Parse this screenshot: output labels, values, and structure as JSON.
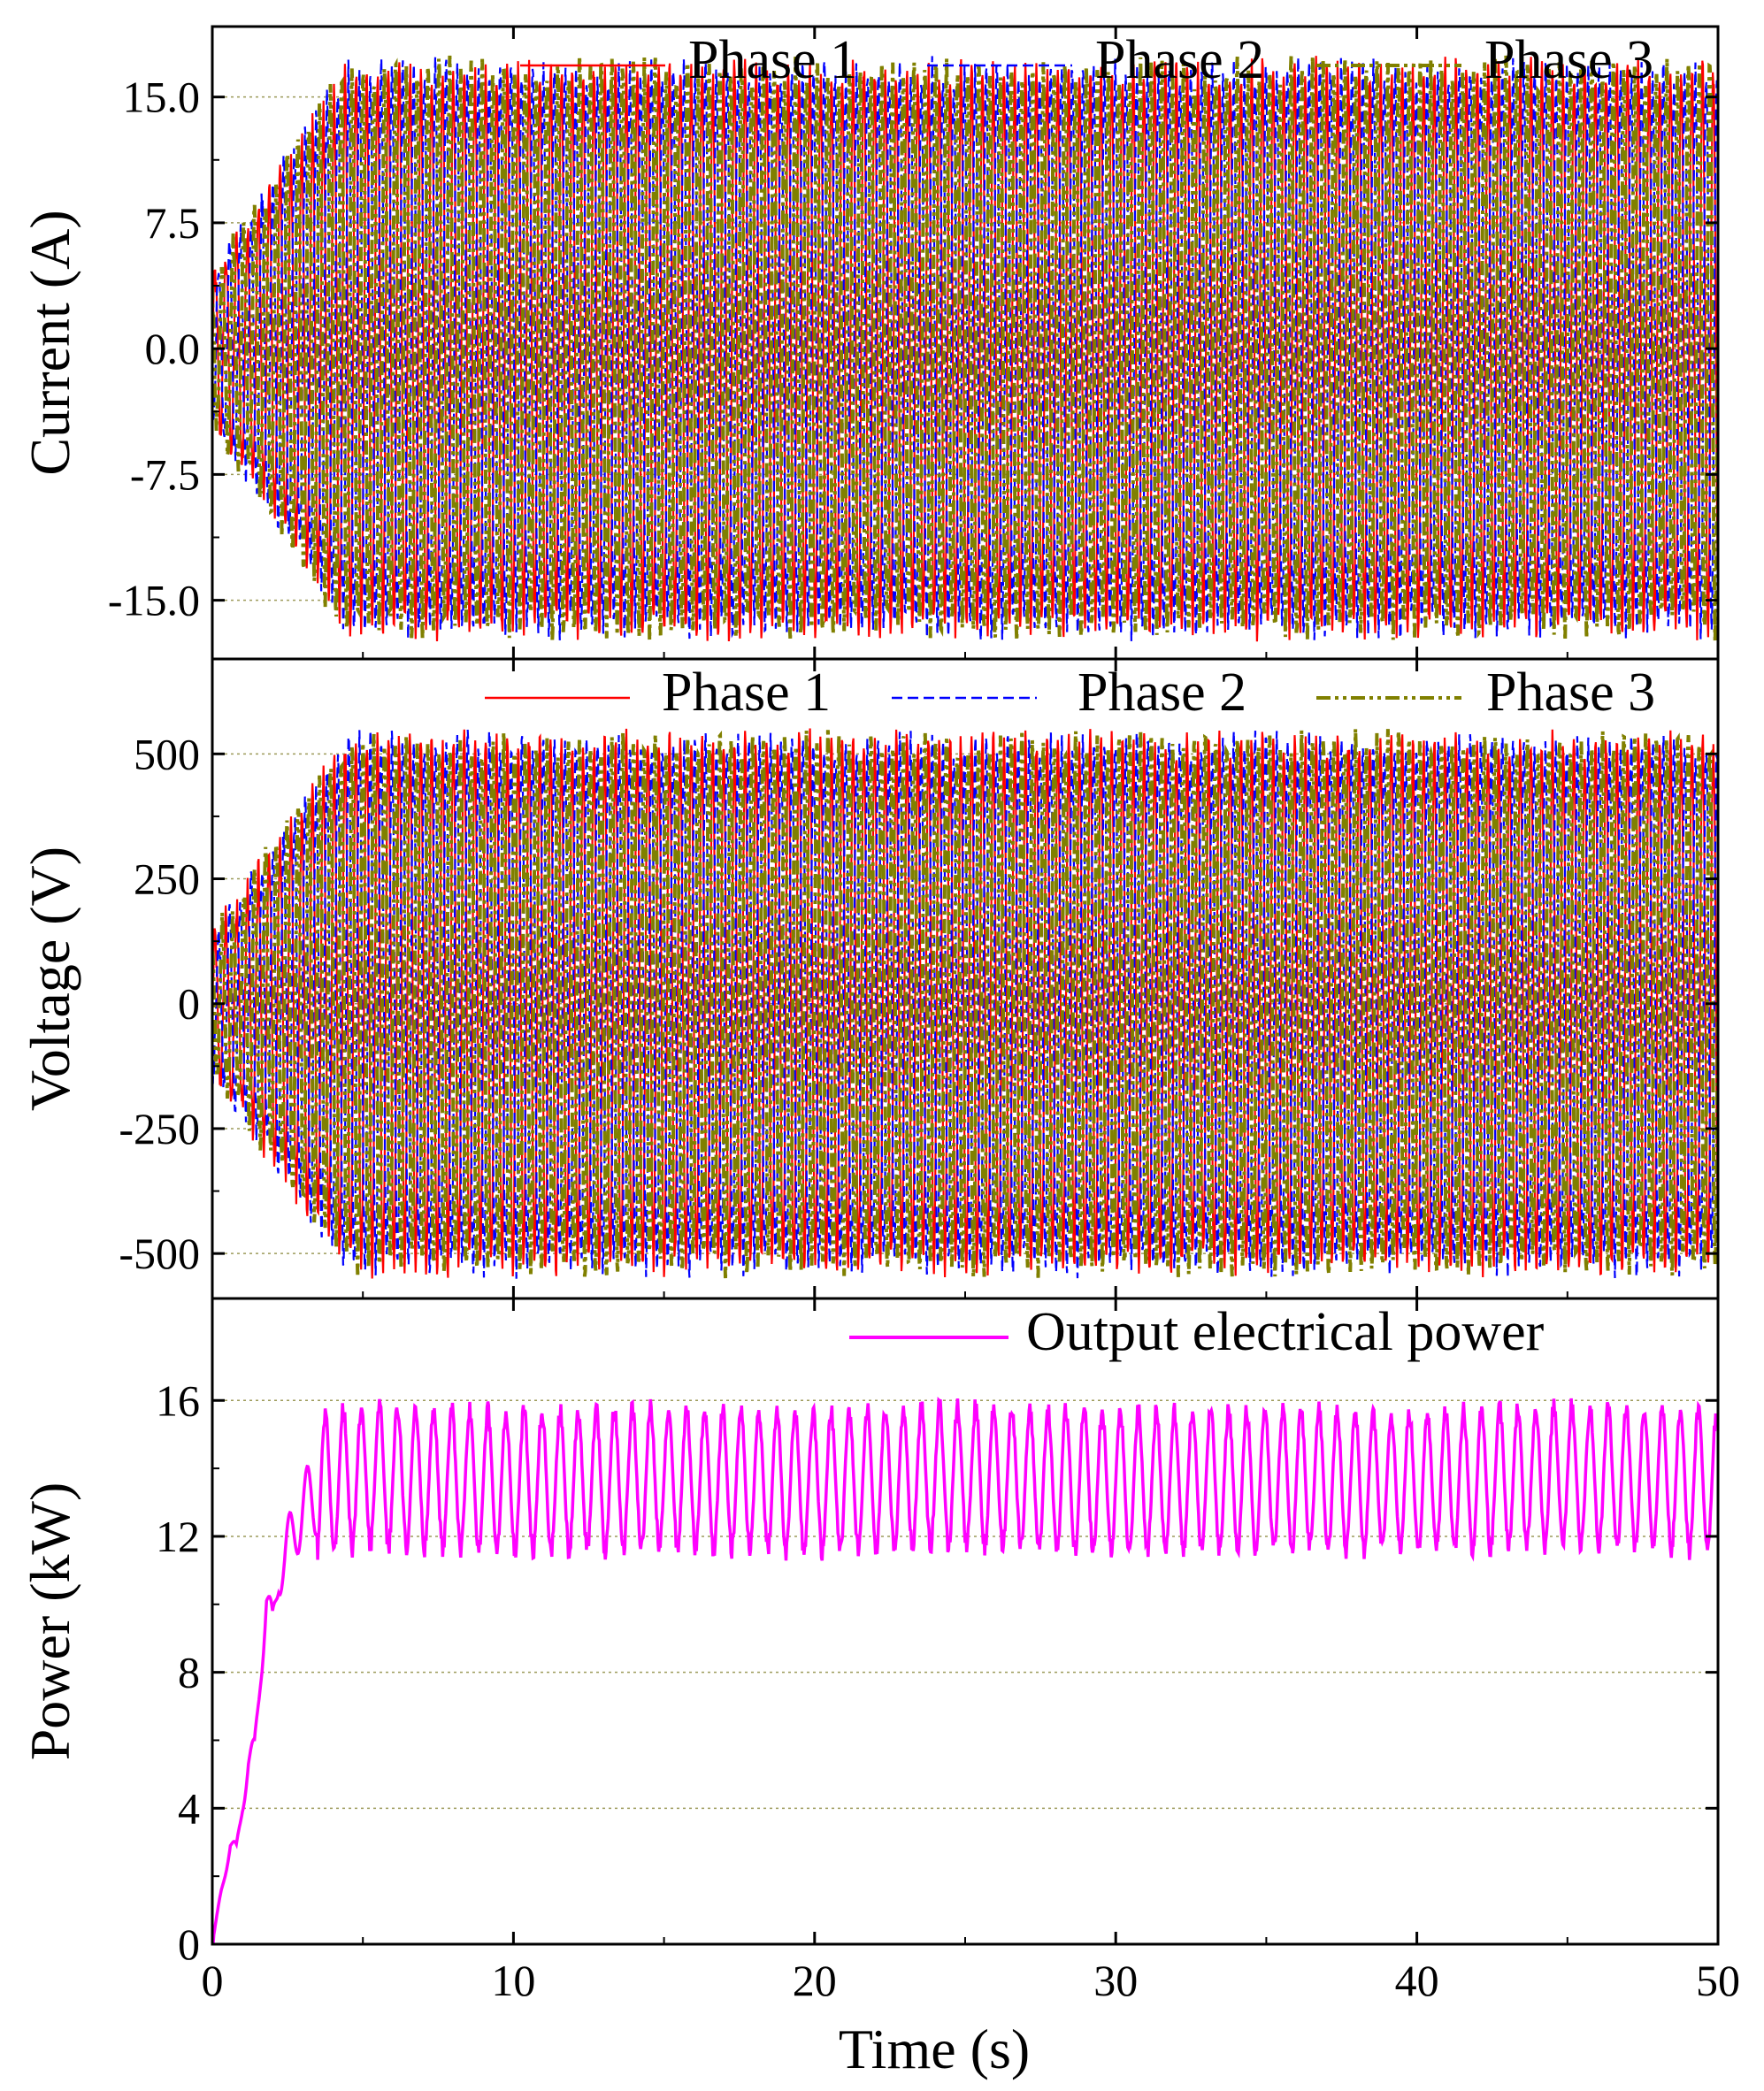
{
  "figure": {
    "shared_x": {
      "label": "Time (s)",
      "lim": [
        0,
        50
      ],
      "ticks": [
        0,
        10,
        20,
        30,
        40,
        50
      ],
      "tick_labels": [
        "0",
        "10",
        "20",
        "30",
        "40",
        "50"
      ]
    }
  },
  "chart_data": [
    {
      "id": "current",
      "type": "line",
      "ylabel": "Current (A)",
      "ylim": [
        -18.5,
        19.2
      ],
      "yticks": [
        -15,
        -7.5,
        0,
        7.5,
        15
      ],
      "ytick_labels": [
        "-15.0",
        "-7.5",
        "0.0",
        "7.5",
        "15.0"
      ],
      "grid": "horizontal dotted",
      "legend_position": "top-right",
      "series": [
        {
          "name": "Phase 1",
          "color": "#ff0000",
          "style": "solid",
          "amplitude": 16.5,
          "phase_deg": 0
        },
        {
          "name": "Phase 2",
          "color": "#0000ff",
          "style": "dashed",
          "amplitude": 16.5,
          "phase_deg": -120
        },
        {
          "name": "Phase 3",
          "color": "#808000",
          "style": "dash-dot-dot",
          "amplitude": 16.5,
          "phase_deg": 120
        }
      ],
      "envelope": {
        "startup_time_s": 4.5,
        "oscillation_period_s": 0.36
      }
    },
    {
      "id": "voltage",
      "type": "line",
      "ylabel": "Voltage (V)",
      "ylim": [
        -590,
        690
      ],
      "yticks": [
        -500,
        -250,
        0,
        250,
        500
      ],
      "ytick_labels": [
        "-500",
        "-250",
        "0",
        "250",
        "500"
      ],
      "grid": "horizontal dotted",
      "legend_position": "top-right",
      "series": [
        {
          "name": "Phase 1",
          "color": "#ff0000",
          "style": "solid",
          "amplitude": 520,
          "phase_deg": 0
        },
        {
          "name": "Phase 2",
          "color": "#0000ff",
          "style": "dashed",
          "amplitude": 520,
          "phase_deg": -120
        },
        {
          "name": "Phase 3",
          "color": "#808000",
          "style": "dash-dot-dot",
          "amplitude": 520,
          "phase_deg": 120
        }
      ],
      "envelope": {
        "startup_time_s": 4.5,
        "oscillation_period_s": 0.36
      }
    },
    {
      "id": "power",
      "type": "line",
      "ylabel": "Power (kW)",
      "ylim": [
        0,
        19
      ],
      "yticks": [
        0,
        4,
        8,
        12,
        16
      ],
      "ytick_labels": [
        "0",
        "4",
        "8",
        "12",
        "16"
      ],
      "grid": "horizontal dotted",
      "legend_position": "top-right",
      "series": [
        {
          "name": "Output electrical power",
          "color": "#ff00ff",
          "style": "solid",
          "t": [
            0,
            0.3,
            0.6,
            0.8,
            1.0,
            1.2,
            1.4,
            1.6,
            1.8,
            2.0,
            2.2,
            2.4,
            2.6,
            2.8,
            3.0,
            3.3,
            3.5,
            4.0,
            5.0,
            10,
            15,
            20,
            25,
            30,
            35,
            40,
            45,
            50
          ],
          "mean": [
            0,
            1.6,
            2.9,
            2.7,
            4.2,
            5.3,
            5.6,
            8.1,
            10.1,
            9.2,
            11.0,
            11.3,
            11.9,
            12.4,
            12.8,
            13.1,
            13.3,
            13.6,
            13.8,
            13.6,
            13.7,
            13.6,
            13.8,
            13.6,
            13.7,
            13.6,
            13.8,
            13.6
          ],
          "ripple_min": 11.8,
          "ripple_max": 15.9,
          "ripple_period_s": 0.6
        }
      ]
    }
  ]
}
